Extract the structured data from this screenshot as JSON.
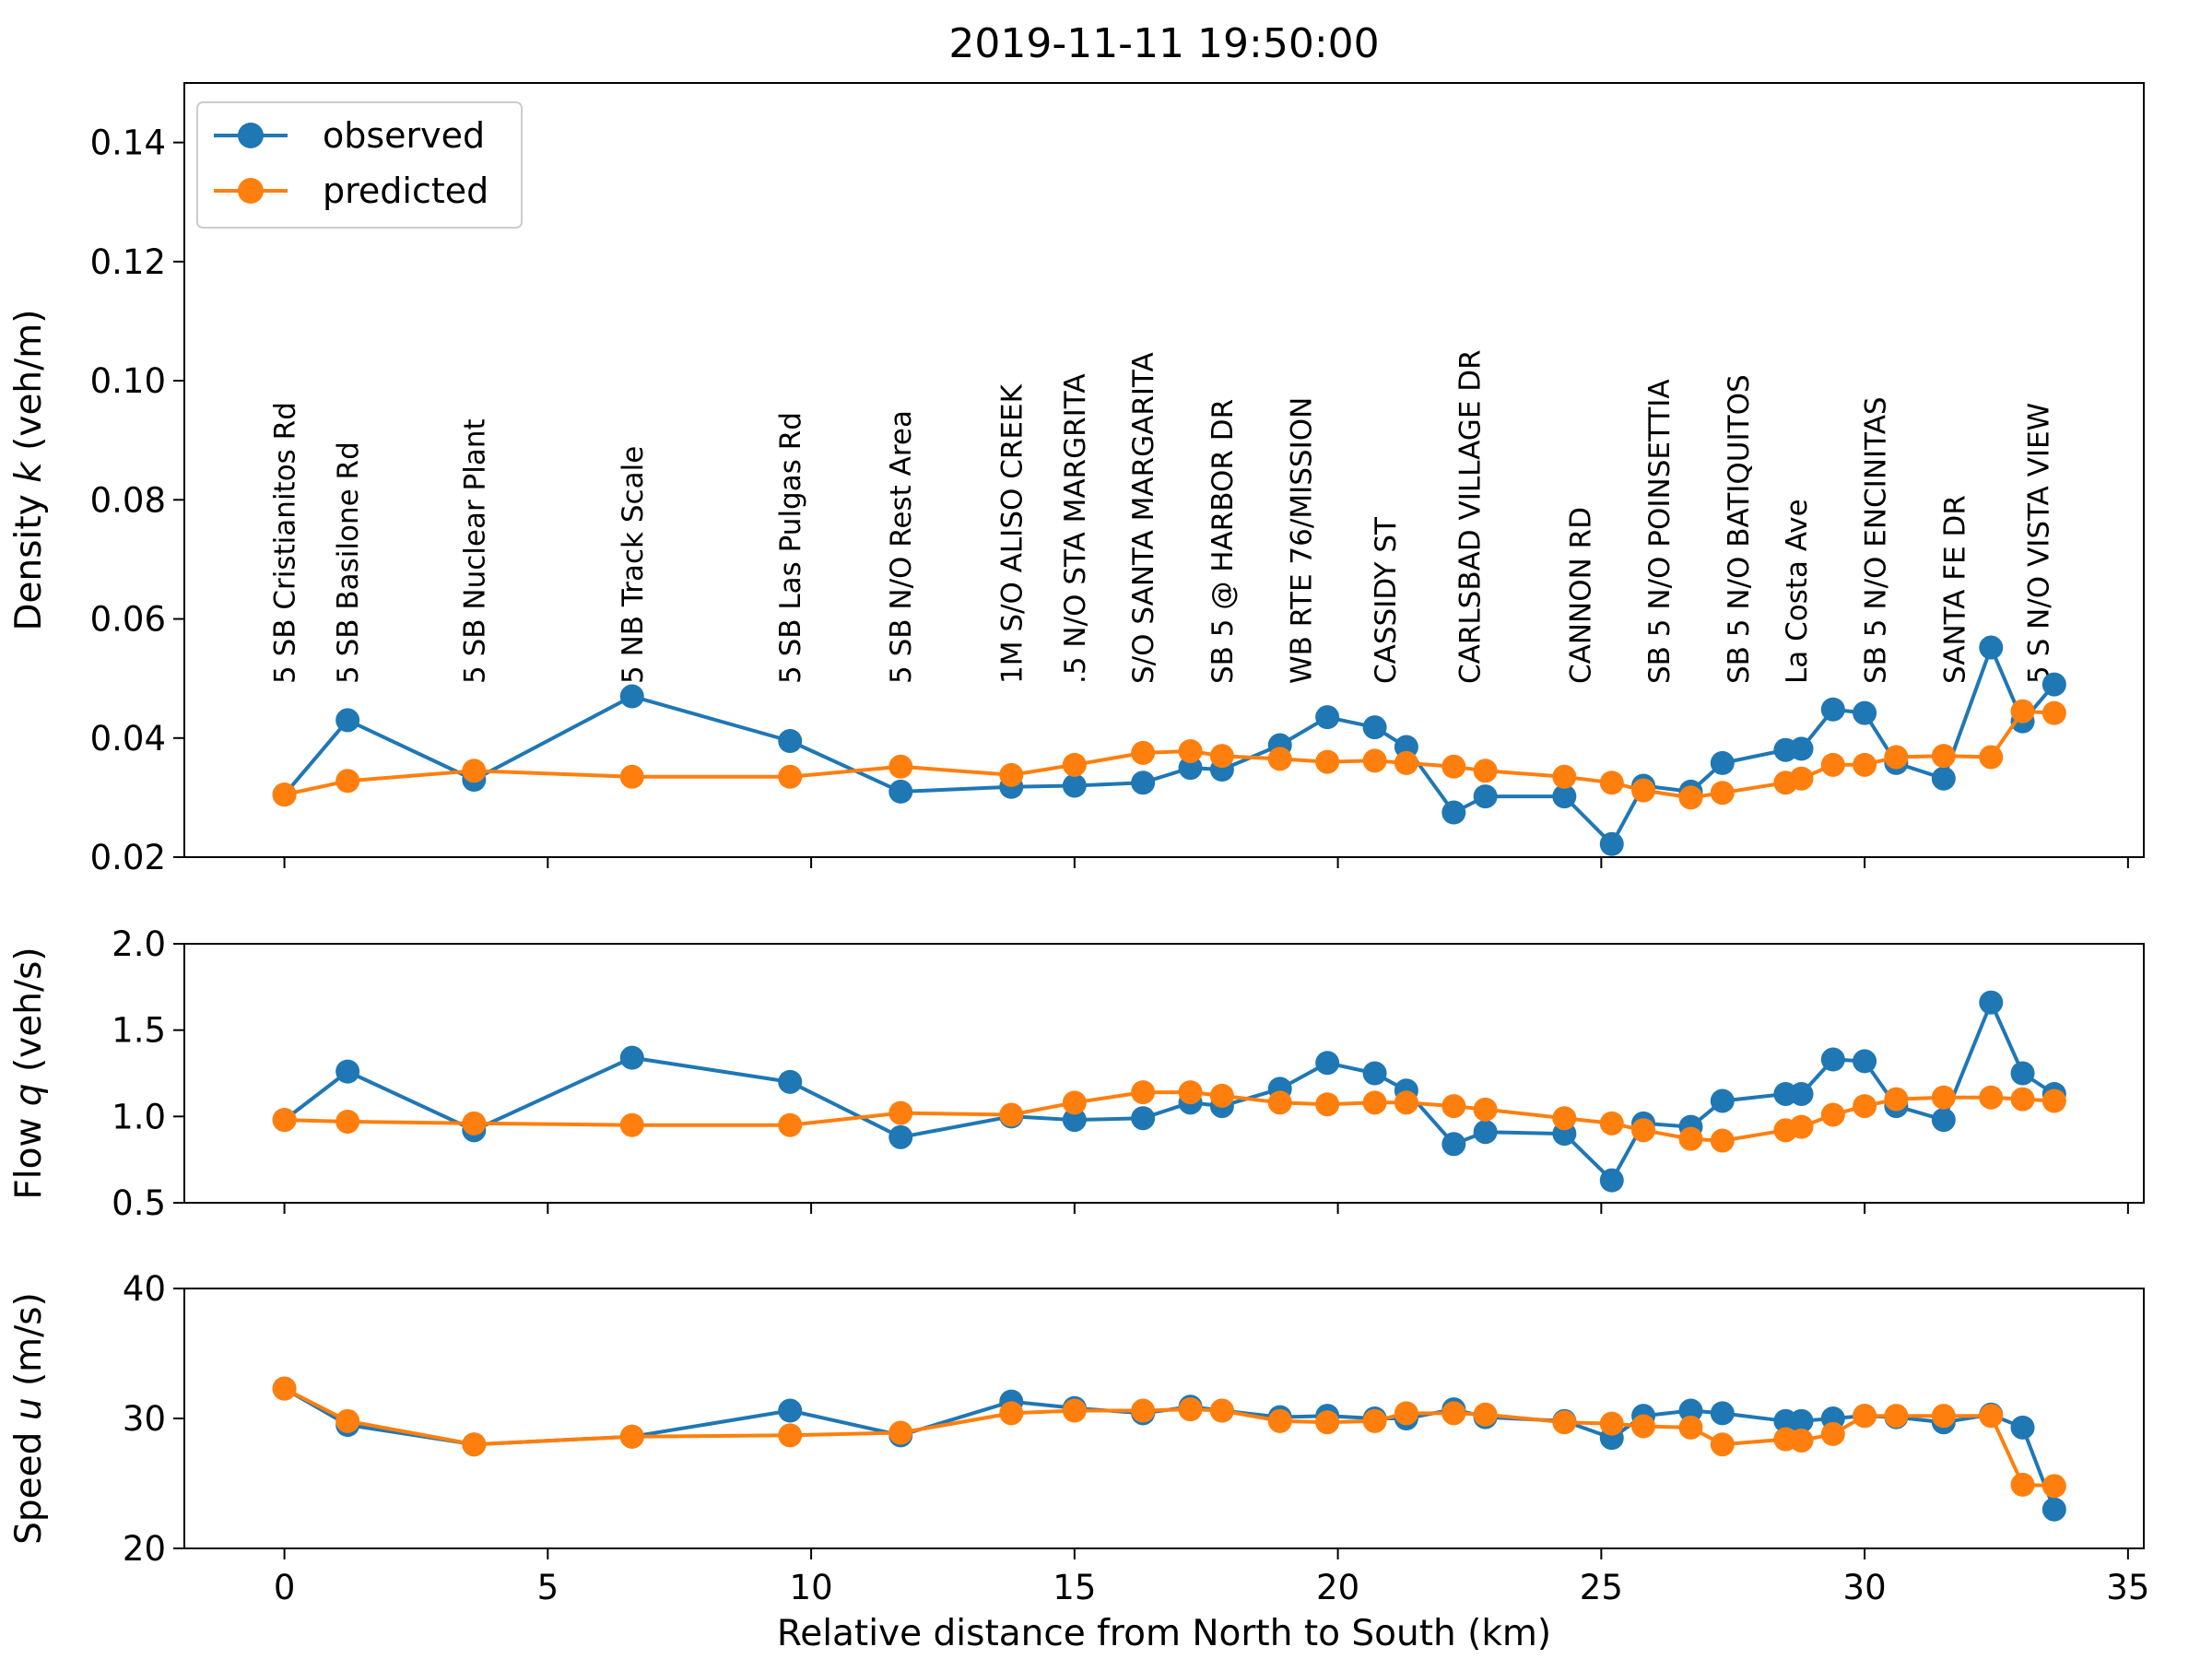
{
  "chart_data": {
    "type": "line",
    "title": "2019-11-11 19:50:00",
    "xlabel": "Relative distance from North to South (km)",
    "xlim": [
      -1.9,
      35.3
    ],
    "xticks": [
      0,
      5,
      10,
      15,
      20,
      25,
      30,
      35
    ],
    "legend": {
      "position": "top-left",
      "entries": [
        "observed",
        "predicted"
      ]
    },
    "colors": {
      "observed": "#1f77b4",
      "predicted": "#ff7f0e"
    },
    "grid": false,
    "stations": [
      {
        "label": "5 SB Cristianitos Rd",
        "x": 0.0
      },
      {
        "label": "5 SB Basilone Rd",
        "x": 1.2
      },
      {
        "label": "5 SB Nuclear Plant",
        "x": 3.6
      },
      {
        "label": "5 NB Track Scale",
        "x": 6.6
      },
      {
        "label": "5 SB  Las Pulgas Rd",
        "x": 9.6
      },
      {
        "label": "5 SB N/O Rest Area",
        "x": 11.7
      },
      {
        "label": "1M S/O ALISO CREEK",
        "x": 13.8
      },
      {
        "label": ".5 N/O STA MARGRITA",
        "x": 15.0
      },
      {
        "label": "S/O SANTA MARGARITA",
        "x": 16.3
      },
      {
        "label": "SB 5 @ HARBOR DR",
        "x": 17.8
      },
      {
        "label": "WB RTE 76/MISSION",
        "x": 19.3
      },
      {
        "label": "CASSIDY ST",
        "x": 20.9
      },
      {
        "label": "CARLSBAD VILLAGE DR",
        "x": 22.5
      },
      {
        "label": "CANNON RD",
        "x": 24.6
      },
      {
        "label": "SB 5 N/O POINSETTIA",
        "x": 26.1
      },
      {
        "label": "SB 5 N/O BATIQUITOS",
        "x": 27.6
      },
      {
        "label": "La Costa Ave",
        "x": 28.7
      },
      {
        "label": "SB 5 N/O ENCINITAS",
        "x": 30.2
      },
      {
        "label": "SANTA FE DR",
        "x": 31.7
      },
      {
        "label": "5 S N/O VISTA VIEW",
        "x": 33.3
      }
    ],
    "x": [
      0.0,
      1.2,
      3.6,
      6.6,
      9.6,
      11.7,
      13.8,
      15.0,
      16.3,
      17.2,
      17.8,
      18.9,
      19.8,
      20.7,
      21.3,
      22.2,
      22.8,
      24.3,
      25.2,
      25.8,
      26.7,
      27.3,
      28.5,
      28.8,
      29.4,
      30.0,
      30.6,
      31.5,
      32.4,
      33.0,
      33.6
    ],
    "panels": [
      {
        "ylabel": "Density k (veh/m)",
        "ylim": [
          0.02,
          0.15
        ],
        "yticks": [
          0.02,
          0.04,
          0.06,
          0.08,
          0.1,
          0.12,
          0.14
        ],
        "series": [
          {
            "name": "observed",
            "values": [
              0.0305,
              0.043,
              0.033,
              0.047,
              0.0395,
              0.031,
              0.0318,
              0.032,
              0.0325,
              0.035,
              0.0347,
              0.0388,
              0.0435,
              0.0418,
              0.0385,
              0.0275,
              0.0302,
              0.0302,
              0.0222,
              0.032,
              0.031,
              0.0358,
              0.038,
              0.0382,
              0.0448,
              0.0442,
              0.0358,
              0.0332,
              0.0552,
              0.0428,
              0.049
            ]
          },
          {
            "name": "predicted",
            "values": [
              0.0305,
              0.0328,
              0.0345,
              0.0335,
              0.0335,
              0.0352,
              0.0338,
              0.0355,
              0.0375,
              0.0378,
              0.037,
              0.0365,
              0.036,
              0.0362,
              0.0358,
              0.0352,
              0.0345,
              0.0335,
              0.0325,
              0.0312,
              0.03,
              0.0308,
              0.0325,
              0.0332,
              0.0355,
              0.0355,
              0.0368,
              0.037,
              0.0368,
              0.0445,
              0.0442
            ]
          }
        ]
      },
      {
        "ylabel": "Flow q (veh/s)",
        "ylim": [
          0.5,
          2.0
        ],
        "yticks": [
          0.5,
          1.0,
          1.5,
          2.0
        ],
        "series": [
          {
            "name": "observed",
            "values": [
              0.98,
              1.26,
              0.92,
              1.34,
              1.2,
              0.88,
              1.0,
              0.98,
              0.99,
              1.08,
              1.06,
              1.16,
              1.31,
              1.25,
              1.15,
              0.84,
              0.91,
              0.9,
              0.63,
              0.96,
              0.94,
              1.09,
              1.13,
              1.13,
              1.33,
              1.32,
              1.06,
              0.98,
              1.66,
              1.25,
              1.13
            ]
          },
          {
            "name": "predicted",
            "values": [
              0.98,
              0.97,
              0.96,
              0.95,
              0.95,
              1.02,
              1.01,
              1.08,
              1.14,
              1.14,
              1.12,
              1.08,
              1.07,
              1.08,
              1.08,
              1.06,
              1.04,
              0.99,
              0.96,
              0.92,
              0.87,
              0.86,
              0.92,
              0.94,
              1.01,
              1.06,
              1.1,
              1.11,
              1.11,
              1.1,
              1.09
            ]
          }
        ]
      },
      {
        "ylabel": "Speed u (m/s)",
        "ylim": [
          20,
          40
        ],
        "yticks": [
          20,
          30,
          40
        ],
        "series": [
          {
            "name": "observed",
            "values": [
              32.3,
              29.5,
              28.0,
              28.6,
              30.6,
              28.7,
              31.3,
              30.8,
              30.4,
              30.9,
              30.6,
              30.1,
              30.2,
              30.0,
              30.0,
              30.7,
              30.1,
              29.8,
              28.5,
              30.2,
              30.6,
              30.4,
              29.8,
              29.8,
              30.0,
              30.2,
              30.1,
              29.7,
              30.3,
              29.3,
              23.0
            ]
          },
          {
            "name": "predicted",
            "values": [
              32.3,
              29.8,
              28.0,
              28.6,
              28.7,
              28.9,
              30.4,
              30.6,
              30.6,
              30.7,
              30.6,
              29.8,
              29.7,
              29.8,
              30.4,
              30.4,
              30.3,
              29.7,
              29.6,
              29.4,
              29.3,
              28.0,
              28.4,
              28.3,
              28.8,
              30.2,
              30.2,
              30.2,
              30.2,
              24.9,
              24.8
            ]
          }
        ]
      }
    ]
  }
}
